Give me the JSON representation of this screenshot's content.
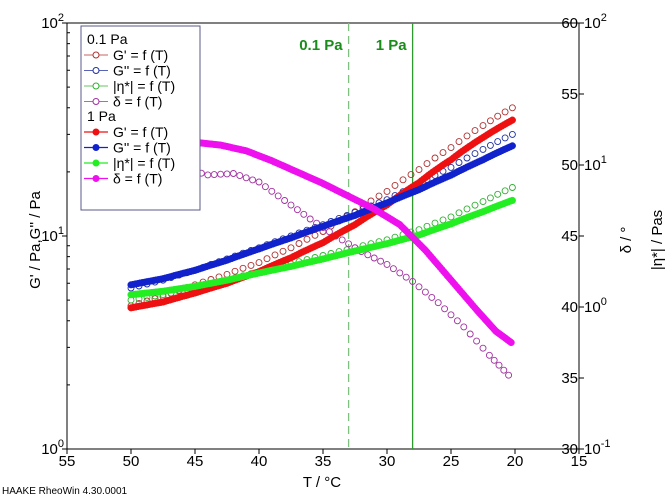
{
  "chart_data": {
    "type": "line",
    "xlabel": "T / °C",
    "ylabel_left": "G' / Pa,G'' / Pa",
    "ylabel_right_inner": "δ / °",
    "ylabel_right_outer": "|η*| / Pas",
    "x_ticks": [
      "55",
      "50",
      "45",
      "40",
      "35",
      "30",
      "25",
      "20",
      "15"
    ],
    "xlim": [
      55,
      15
    ],
    "x_reversed": true,
    "yleft_scale": "log",
    "yleft_lim": [
      1,
      100
    ],
    "yleft_ticks": [
      {
        "base": "10",
        "exp": "0"
      },
      {
        "base": "10",
        "exp": "1"
      },
      {
        "base": "10",
        "exp": "2"
      }
    ],
    "yright_inner_lim": [
      30,
      60
    ],
    "yright_inner_ticks": [
      "30",
      "35",
      "40",
      "45",
      "50",
      "55",
      "60"
    ],
    "yright_outer_scale": "log",
    "yright_outer_lim": [
      0.1,
      100
    ],
    "yright_outer_ticks": [
      {
        "base": "10",
        "exp": "-1"
      },
      {
        "base": "10",
        "exp": "0"
      },
      {
        "base": "10",
        "exp": "1"
      },
      {
        "base": "10",
        "exp": "2"
      }
    ],
    "vlines": [
      {
        "x": 33,
        "label": "0.1 Pa",
        "style": "dashed",
        "color": "#7fbf7f",
        "label_color": "#1a8c1a"
      },
      {
        "x": 28,
        "label": "1 Pa",
        "style": "solid",
        "color": "#2e9a2e",
        "label_color": "#1a8c1a"
      }
    ],
    "legend": {
      "groups": [
        {
          "title": "0.1 Pa",
          "entries": [
            {
              "label": "G' = f (T)",
              "color": "#b03030",
              "marker": "open-circle"
            },
            {
              "label": "G'' = f (T)",
              "color": "#2030a0",
              "marker": "open-circle"
            },
            {
              "label": "|η*| = f (T)",
              "color": "#30b030",
              "marker": "open-circle"
            },
            {
              "label": "δ = f (T)",
              "color": "#a030a0",
              "marker": "open-circle"
            }
          ]
        },
        {
          "title": "1 Pa",
          "entries": [
            {
              "label": "G' = f (T)",
              "color": "#ee1111",
              "marker": "filled-circle"
            },
            {
              "label": "G'' = f (T)",
              "color": "#1122cc",
              "marker": "filled-circle"
            },
            {
              "label": "|η*| = f (T)",
              "color": "#22ee22",
              "marker": "filled-circle"
            },
            {
              "label": "δ = f (T)",
              "color": "#ee11ee",
              "marker": "filled-circle"
            }
          ]
        }
      ]
    },
    "series": [
      {
        "name": "G' = f (T)",
        "group": "0.1 Pa",
        "axis": "left-log",
        "marker": "open",
        "color": "#b03030",
        "points": [
          [
            50,
            4.7
          ],
          [
            47.5,
            5.2
          ],
          [
            45,
            5.9
          ],
          [
            42.5,
            6.6
          ],
          [
            40,
            7.5
          ],
          [
            37.5,
            8.8
          ],
          [
            35,
            10.5
          ],
          [
            32.5,
            13
          ],
          [
            30,
            16.2
          ],
          [
            27.5,
            20.5
          ],
          [
            25,
            26
          ],
          [
            22.5,
            33
          ],
          [
            20.2,
            40
          ]
        ]
      },
      {
        "name": "G'' = f (T)",
        "group": "0.1 Pa",
        "axis": "left-log",
        "marker": "open",
        "color": "#2030a0",
        "points": [
          [
            50,
            5.7
          ],
          [
            47.5,
            6.2
          ],
          [
            45,
            6.9
          ],
          [
            42.5,
            7.8
          ],
          [
            40,
            8.8
          ],
          [
            37.5,
            10
          ],
          [
            35,
            11.3
          ],
          [
            32.5,
            12.9
          ],
          [
            30,
            14.8
          ],
          [
            27.5,
            17.5
          ],
          [
            25,
            21
          ],
          [
            22.5,
            25.5
          ],
          [
            20.2,
            30
          ]
        ]
      },
      {
        "name": "|η*| = f (T)",
        "group": "0.1 Pa",
        "axis": "left-log",
        "marker": "open",
        "color": "#30b030",
        "points": [
          [
            50,
            5.0
          ],
          [
            47.5,
            5.3
          ],
          [
            45,
            5.7
          ],
          [
            42.5,
            6.2
          ],
          [
            40,
            6.8
          ],
          [
            37.5,
            7.4
          ],
          [
            35,
            8.1
          ],
          [
            32.5,
            8.8
          ],
          [
            30,
            9.6
          ],
          [
            27.5,
            10.7
          ],
          [
            25,
            12.3
          ],
          [
            22.5,
            14.5
          ],
          [
            20.2,
            16.9
          ]
        ]
      },
      {
        "name": "δ = f (T)",
        "group": "0.1 Pa",
        "axis": "right-linear",
        "marker": "open",
        "color": "#a030a0",
        "points": [
          [
            50,
            51.5
          ],
          [
            48,
            50.6
          ],
          [
            46,
            49.8
          ],
          [
            44,
            49.3
          ],
          [
            42,
            49.4
          ],
          [
            40,
            48.8
          ],
          [
            38,
            47.5
          ],
          [
            36,
            46.2
          ],
          [
            34,
            45
          ],
          [
            32,
            43.9
          ],
          [
            30,
            43
          ],
          [
            28,
            41.8
          ],
          [
            26,
            40.3
          ],
          [
            24,
            38.6
          ],
          [
            22,
            36.6
          ],
          [
            20.5,
            35.2
          ]
        ]
      },
      {
        "name": "G' = f (T)",
        "group": "1 Pa",
        "axis": "left-log",
        "marker": "filled",
        "color": "#ee1111",
        "points": [
          [
            50,
            4.6
          ],
          [
            47.5,
            4.9
          ],
          [
            45,
            5.4
          ],
          [
            42.5,
            6.0
          ],
          [
            40,
            6.8
          ],
          [
            37.5,
            7.9
          ],
          [
            35,
            9.3
          ],
          [
            32.5,
            11.3
          ],
          [
            30,
            14
          ],
          [
            27.5,
            17.8
          ],
          [
            25,
            22.8
          ],
          [
            22.5,
            29
          ],
          [
            20.2,
            35
          ]
        ]
      },
      {
        "name": "G'' = f (T)",
        "group": "1 Pa",
        "axis": "left-log",
        "marker": "filled",
        "color": "#1122cc",
        "points": [
          [
            50,
            5.9
          ],
          [
            47.5,
            6.3
          ],
          [
            45,
            6.9
          ],
          [
            42.5,
            7.7
          ],
          [
            40,
            8.7
          ],
          [
            37.5,
            9.8
          ],
          [
            35,
            11.1
          ],
          [
            32.5,
            12.5
          ],
          [
            30,
            14.3
          ],
          [
            27.5,
            16.5
          ],
          [
            25,
            19.3
          ],
          [
            22.5,
            22.8
          ],
          [
            20.2,
            26.5
          ]
        ]
      },
      {
        "name": "|η*| = f (T)",
        "group": "1 Pa",
        "axis": "left-log",
        "marker": "filled",
        "color": "#22ee22",
        "points": [
          [
            50,
            5.3
          ],
          [
            47.5,
            5.5
          ],
          [
            45,
            5.8
          ],
          [
            42.5,
            6.2
          ],
          [
            40,
            6.7
          ],
          [
            37.5,
            7.2
          ],
          [
            35,
            7.8
          ],
          [
            32.5,
            8.5
          ],
          [
            30,
            9.2
          ],
          [
            27.5,
            10.1
          ],
          [
            25,
            11.4
          ],
          [
            22.5,
            13
          ],
          [
            20.2,
            14.7
          ]
        ]
      },
      {
        "name": "δ = f (T)",
        "group": "1 Pa",
        "axis": "right-linear",
        "marker": "filled",
        "color": "#ee11ee",
        "points": [
          [
            50,
            52.1
          ],
          [
            49,
            51.9
          ],
          [
            47,
            51.7
          ],
          [
            45,
            51.6
          ],
          [
            43,
            51.4
          ],
          [
            41,
            51
          ],
          [
            39,
            50.3
          ],
          [
            37,
            49.5
          ],
          [
            35,
            48.7
          ],
          [
            33,
            47.8
          ],
          [
            31,
            46.9
          ],
          [
            29,
            45.8
          ],
          [
            27,
            44
          ],
          [
            25,
            41.9
          ],
          [
            23,
            39.8
          ],
          [
            21.5,
            38.3
          ],
          [
            20.3,
            37.5
          ]
        ]
      }
    ]
  },
  "footer": {
    "software": "HAAKE RheoWin 4.30.0001"
  }
}
